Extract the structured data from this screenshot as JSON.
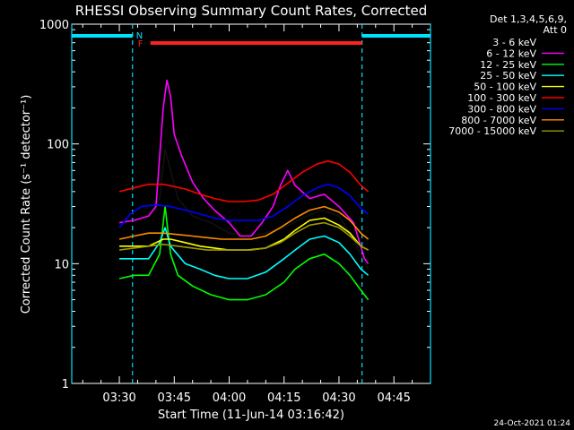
{
  "chart_data": {
    "type": "line",
    "title": "RHESSI Observing Summary Count Rates, Corrected",
    "xlabel": "Start Time (11-Jun-14 03:16:42)",
    "ylabel": "Corrected Count Rate (s⁻¹ detector⁻¹)",
    "yscale": "log",
    "ylim": [
      1,
      1000
    ],
    "yticks": [
      {
        "v": 1,
        "label": "1"
      },
      {
        "v": 10,
        "label": "10"
      },
      {
        "v": 100,
        "label": "100"
      },
      {
        "v": 1000,
        "label": "1000"
      }
    ],
    "xlim_minutes": [
      197,
      295
    ],
    "xticks": [
      {
        "m": 210,
        "label": "03:30"
      },
      {
        "m": 225,
        "label": "03:45"
      },
      {
        "m": 240,
        "label": "04:00"
      },
      {
        "m": 255,
        "label": "04:15"
      },
      {
        "m": 270,
        "label": "04:30"
      },
      {
        "m": 285,
        "label": "04:45"
      }
    ],
    "legend_header": [
      "Det 1,3,4,5,6,9,",
      "Att 0"
    ],
    "legend_position": "right",
    "footer_date": "24-Oct-2021 01:24",
    "flags": {
      "N_label": "N",
      "F_label": "F",
      "N_color": "#00e0ff",
      "F_color": "#ff2020",
      "night_spans": [
        [
          197,
          213.6
        ],
        [
          276.3,
          295
        ]
      ],
      "flare_span": [
        218.5,
        276.3
      ]
    },
    "series": [
      {
        "name": "3 - 6 keV",
        "color": "#000000",
        "points": [
          [
            210,
            22
          ],
          [
            214,
            23
          ],
          [
            218,
            25
          ],
          [
            221,
            35
          ],
          [
            222.5,
            90
          ],
          [
            224,
            60
          ],
          [
            226,
            35
          ],
          [
            230,
            25
          ],
          [
            235,
            22
          ],
          [
            240,
            18
          ],
          [
            245,
            17
          ],
          [
            250,
            18
          ],
          [
            255,
            20
          ],
          [
            260,
            24
          ],
          [
            265,
            28
          ],
          [
            270,
            25
          ],
          [
            273,
            18
          ],
          [
            276,
            12
          ],
          [
            278,
            9
          ]
        ]
      },
      {
        "name": "6 - 12 keV",
        "color": "#ff00ff",
        "points": [
          [
            210,
            22
          ],
          [
            214,
            23
          ],
          [
            218,
            25
          ],
          [
            220,
            30
          ],
          [
            222,
            200
          ],
          [
            223,
            340
          ],
          [
            224,
            250
          ],
          [
            225,
            120
          ],
          [
            227,
            80
          ],
          [
            230,
            48
          ],
          [
            233,
            35
          ],
          [
            236,
            28
          ],
          [
            240,
            22
          ],
          [
            243,
            17
          ],
          [
            246,
            17
          ],
          [
            249,
            22
          ],
          [
            252,
            30
          ],
          [
            254,
            45
          ],
          [
            256,
            60
          ],
          [
            258,
            45
          ],
          [
            262,
            35
          ],
          [
            266,
            38
          ],
          [
            270,
            30
          ],
          [
            274,
            22
          ],
          [
            277,
            11
          ],
          [
            278,
            10
          ]
        ]
      },
      {
        "name": "12 - 25 keV",
        "color": "#00ff00",
        "points": [
          [
            210,
            7.5
          ],
          [
            214,
            8
          ],
          [
            218,
            8
          ],
          [
            221,
            12
          ],
          [
            222.5,
            30
          ],
          [
            224,
            12
          ],
          [
            226,
            8
          ],
          [
            230,
            6.5
          ],
          [
            235,
            5.5
          ],
          [
            240,
            5
          ],
          [
            245,
            5
          ],
          [
            250,
            5.5
          ],
          [
            255,
            7
          ],
          [
            258,
            9
          ],
          [
            262,
            11
          ],
          [
            266,
            12
          ],
          [
            270,
            10
          ],
          [
            273,
            8
          ],
          [
            276,
            6
          ],
          [
            278,
            5
          ]
        ]
      },
      {
        "name": "25 - 50 keV",
        "color": "#00ffff",
        "points": [
          [
            210,
            11
          ],
          [
            214,
            11
          ],
          [
            218,
            11
          ],
          [
            221,
            15
          ],
          [
            222.5,
            20
          ],
          [
            224,
            14
          ],
          [
            228,
            10
          ],
          [
            232,
            9
          ],
          [
            236,
            8
          ],
          [
            240,
            7.5
          ],
          [
            245,
            7.5
          ],
          [
            250,
            8.5
          ],
          [
            255,
            11
          ],
          [
            258,
            13
          ],
          [
            262,
            16
          ],
          [
            266,
            17
          ],
          [
            270,
            15
          ],
          [
            273,
            12
          ],
          [
            276,
            9
          ],
          [
            278,
            8
          ]
        ]
      },
      {
        "name": "50 - 100 keV",
        "color": "#ffff00",
        "points": [
          [
            210,
            14
          ],
          [
            214,
            14
          ],
          [
            218,
            14
          ],
          [
            222,
            16
          ],
          [
            224,
            16
          ],
          [
            228,
            15
          ],
          [
            232,
            14
          ],
          [
            236,
            13.5
          ],
          [
            240,
            13
          ],
          [
            245,
            13
          ],
          [
            250,
            13.5
          ],
          [
            255,
            16
          ],
          [
            258,
            19
          ],
          [
            262,
            23
          ],
          [
            266,
            24
          ],
          [
            270,
            21
          ],
          [
            273,
            18
          ],
          [
            276,
            14
          ],
          [
            278,
            13
          ]
        ]
      },
      {
        "name": "100 - 300 keV",
        "color": "#ff0000",
        "points": [
          [
            210,
            40
          ],
          [
            214,
            43
          ],
          [
            218,
            46
          ],
          [
            222,
            46
          ],
          [
            225,
            44
          ],
          [
            228,
            42
          ],
          [
            232,
            38
          ],
          [
            236,
            35
          ],
          [
            240,
            33
          ],
          [
            244,
            33
          ],
          [
            248,
            34
          ],
          [
            252,
            38
          ],
          [
            256,
            47
          ],
          [
            260,
            58
          ],
          [
            264,
            68
          ],
          [
            267,
            72
          ],
          [
            270,
            68
          ],
          [
            273,
            58
          ],
          [
            276,
            45
          ],
          [
            278,
            40
          ]
        ]
      },
      {
        "name": "300 - 800 keV",
        "color": "#0000ff",
        "points": [
          [
            210,
            20
          ],
          [
            213,
            26
          ],
          [
            216,
            30
          ],
          [
            220,
            31
          ],
          [
            224,
            30
          ],
          [
            228,
            28
          ],
          [
            232,
            26
          ],
          [
            236,
            24
          ],
          [
            240,
            23
          ],
          [
            244,
            23
          ],
          [
            248,
            23
          ],
          [
            252,
            25
          ],
          [
            256,
            30
          ],
          [
            260,
            37
          ],
          [
            264,
            43
          ],
          [
            267,
            46
          ],
          [
            270,
            43
          ],
          [
            273,
            37
          ],
          [
            276,
            29
          ],
          [
            278,
            26
          ]
        ]
      },
      {
        "name": "800 - 7000 keV",
        "color": "#ff8c00",
        "points": [
          [
            210,
            16
          ],
          [
            214,
            17
          ],
          [
            218,
            18
          ],
          [
            222,
            18
          ],
          [
            226,
            17.5
          ],
          [
            230,
            17
          ],
          [
            234,
            16.5
          ],
          [
            238,
            16
          ],
          [
            242,
            16
          ],
          [
            246,
            16
          ],
          [
            250,
            17
          ],
          [
            254,
            20
          ],
          [
            258,
            24
          ],
          [
            262,
            28
          ],
          [
            266,
            30
          ],
          [
            270,
            27
          ],
          [
            273,
            23
          ],
          [
            276,
            18
          ],
          [
            278,
            16
          ]
        ]
      },
      {
        "name": "7000 - 15000 keV",
        "color": "#9a9a00",
        "points": [
          [
            210,
            13
          ],
          [
            214,
            13.5
          ],
          [
            218,
            14
          ],
          [
            222,
            14.5
          ],
          [
            226,
            14
          ],
          [
            230,
            13.5
          ],
          [
            234,
            13
          ],
          [
            238,
            13
          ],
          [
            242,
            13
          ],
          [
            246,
            13
          ],
          [
            250,
            13.5
          ],
          [
            254,
            15
          ],
          [
            258,
            18
          ],
          [
            262,
            21
          ],
          [
            266,
            22
          ],
          [
            270,
            20
          ],
          [
            273,
            17
          ],
          [
            276,
            14
          ],
          [
            278,
            13
          ]
        ]
      }
    ]
  }
}
